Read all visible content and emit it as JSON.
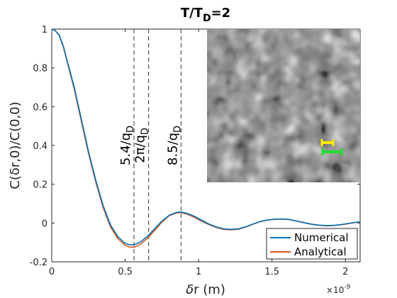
{
  "chart_data": {
    "type": "line",
    "title": "T/T",
    "title_subscript": "D",
    "title_suffix": "=2",
    "xlabel_prefix": "δ",
    "xlabel": "r (m)",
    "ylabel": "C(δr,0)/C(0,0)",
    "xlim": [
      0,
      2.1
    ],
    "ylim": [
      -0.2,
      1
    ],
    "x_exponent_label": "×10",
    "x_exponent_power": "-9",
    "x_ticks": [
      0,
      0.5,
      1,
      1.5,
      2
    ],
    "x_tick_labels": [
      "0",
      "0.5",
      "1",
      "1.5",
      "2"
    ],
    "y_ticks": [
      -0.2,
      0,
      0.2,
      0.4,
      0.6,
      0.8,
      1
    ],
    "y_tick_labels": [
      "-0.2",
      "0",
      "0.2",
      "0.4",
      "0.6",
      "0.8",
      "1"
    ],
    "grid": false,
    "legend_position": "bottom-right",
    "annotations": [
      {
        "x": 0.56,
        "main": "5.4/q",
        "sub": "D"
      },
      {
        "x": 0.66,
        "main": "2π/q",
        "sub": "D"
      },
      {
        "x": 0.88,
        "main": "8.5/q",
        "sub": "D"
      }
    ],
    "series": [
      {
        "name": "Numerical",
        "color": "#0072BD",
        "x": [
          0,
          0.02,
          0.05,
          0.08,
          0.1,
          0.15,
          0.2,
          0.25,
          0.3,
          0.35,
          0.4,
          0.45,
          0.5,
          0.53,
          0.56,
          0.6,
          0.65,
          0.7,
          0.75,
          0.8,
          0.85,
          0.88,
          0.92,
          0.97,
          1.02,
          1.07,
          1.12,
          1.17,
          1.22,
          1.27,
          1.32,
          1.37,
          1.42,
          1.47,
          1.52,
          1.57,
          1.62,
          1.67,
          1.72,
          1.77,
          1.82,
          1.87,
          1.92,
          1.97,
          2.02,
          2.07,
          2.1
        ],
        "y": [
          1,
          0.995,
          0.97,
          0.91,
          0.85,
          0.71,
          0.54,
          0.37,
          0.22,
          0.09,
          -0.01,
          -0.07,
          -0.105,
          -0.112,
          -0.112,
          -0.1,
          -0.07,
          -0.03,
          0.01,
          0.04,
          0.055,
          0.057,
          0.05,
          0.035,
          0.015,
          -0.005,
          -0.02,
          -0.03,
          -0.033,
          -0.03,
          -0.02,
          -0.005,
          0.008,
          0.016,
          0.02,
          0.021,
          0.018,
          0.01,
          0.002,
          -0.006,
          -0.011,
          -0.013,
          -0.012,
          -0.008,
          -0.002,
          0.004,
          0.006
        ]
      },
      {
        "name": "Analytical",
        "color": "#D95319",
        "x": [
          0,
          0.02,
          0.05,
          0.08,
          0.1,
          0.15,
          0.2,
          0.25,
          0.3,
          0.35,
          0.4,
          0.45,
          0.5,
          0.53,
          0.56,
          0.6,
          0.65,
          0.7,
          0.75,
          0.8,
          0.85,
          0.88,
          0.92,
          0.97,
          1.02,
          1.07,
          1.12,
          1.17,
          1.22,
          1.27,
          1.32,
          1.37,
          1.42,
          1.47,
          1.52,
          1.57,
          1.62,
          1.67,
          1.72,
          1.77,
          1.82,
          1.87,
          1.92,
          1.97,
          2.02,
          2.07,
          2.1
        ],
        "y": [
          1,
          0.995,
          0.968,
          0.905,
          0.845,
          0.7,
          0.53,
          0.36,
          0.21,
          0.08,
          -0.02,
          -0.08,
          -0.115,
          -0.124,
          -0.125,
          -0.112,
          -0.08,
          -0.038,
          0.005,
          0.038,
          0.052,
          0.054,
          0.046,
          0.03,
          0.01,
          -0.008,
          -0.023,
          -0.033,
          -0.035,
          -0.032,
          -0.021,
          -0.006,
          0.007,
          0.015,
          0.019,
          0.02,
          0.017,
          0.009,
          0.001,
          -0.007,
          -0.012,
          -0.014,
          -0.013,
          -0.009,
          -0.003,
          0.003,
          0.005
        ]
      }
    ],
    "inset": {
      "description_type": "image",
      "markers": [
        {
          "color": "#FFEB00"
        },
        {
          "color": "#22DD33"
        }
      ]
    }
  }
}
